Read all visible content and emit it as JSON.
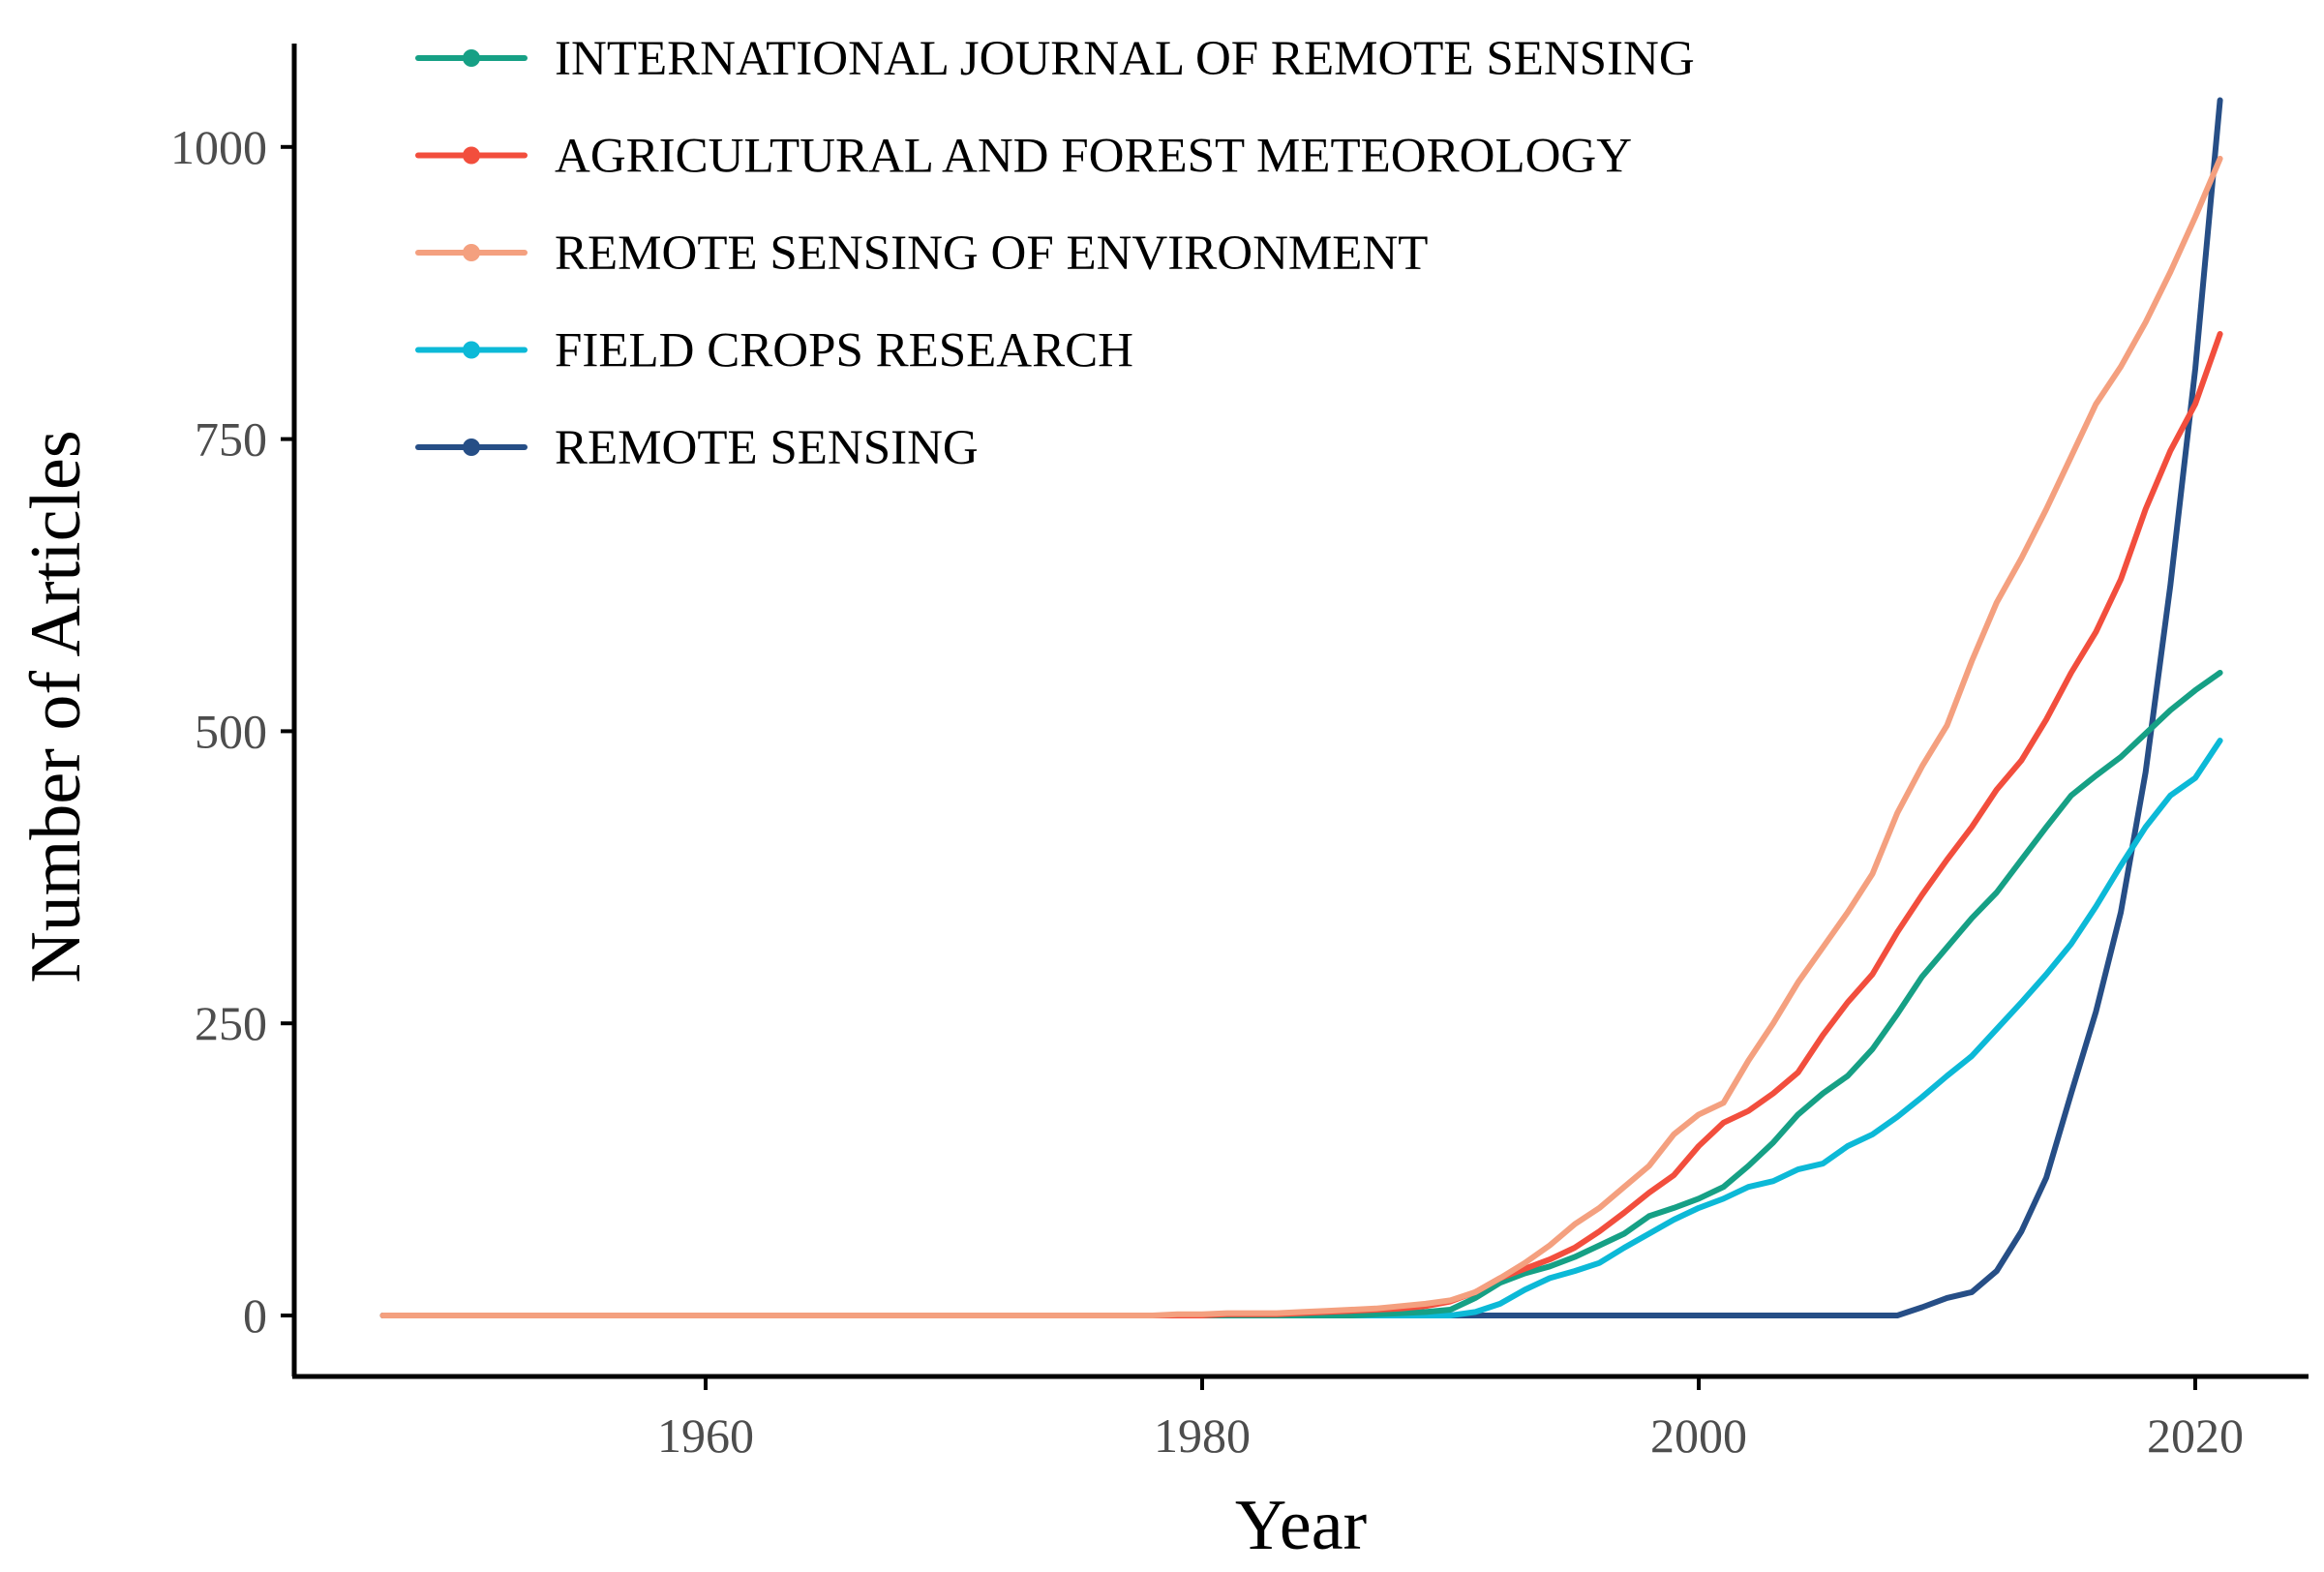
{
  "chart_data": {
    "type": "line",
    "title": "",
    "xlabel": "Year",
    "ylabel": "Number of Articles",
    "xlim": [
      1943,
      2024
    ],
    "ylim": [
      -50,
      1080
    ],
    "x_ticks": [
      1960,
      1980,
      2000,
      2020
    ],
    "y_ticks": [
      0,
      250,
      500,
      750,
      1000
    ],
    "grid": false,
    "legend_position": "top-left",
    "x": [
      1947,
      1948,
      1949,
      1950,
      1951,
      1952,
      1953,
      1954,
      1955,
      1956,
      1957,
      1958,
      1959,
      1960,
      1961,
      1962,
      1963,
      1964,
      1965,
      1966,
      1967,
      1968,
      1969,
      1970,
      1971,
      1972,
      1973,
      1974,
      1975,
      1976,
      1977,
      1978,
      1979,
      1980,
      1981,
      1982,
      1983,
      1984,
      1985,
      1986,
      1987,
      1988,
      1989,
      1990,
      1991,
      1992,
      1993,
      1994,
      1995,
      1996,
      1997,
      1998,
      1999,
      2000,
      2001,
      2002,
      2003,
      2004,
      2005,
      2006,
      2007,
      2008,
      2009,
      2010,
      2011,
      2012,
      2013,
      2014,
      2015,
      2016,
      2017,
      2018,
      2019,
      2020,
      2021
    ],
    "series": [
      {
        "name": "REMOTE SENSING",
        "color": "#264E86",
        "values": [
          0,
          0,
          0,
          0,
          0,
          0,
          0,
          0,
          0,
          0,
          0,
          0,
          0,
          0,
          0,
          0,
          0,
          0,
          0,
          0,
          0,
          0,
          0,
          0,
          0,
          0,
          0,
          0,
          0,
          0,
          0,
          0,
          0,
          0,
          0,
          0,
          0,
          0,
          0,
          0,
          0,
          0,
          0,
          0,
          0,
          0,
          0,
          0,
          0,
          0,
          0,
          0,
          0,
          0,
          0,
          0,
          0,
          0,
          0,
          0,
          0,
          0,
          7,
          15,
          20,
          38,
          72,
          118,
          190,
          260,
          345,
          465,
          625,
          810,
          1040
        ]
      },
      {
        "name": "FIELD CROPS RESEARCH",
        "color": "#0CB9D7",
        "values": [
          0,
          0,
          0,
          0,
          0,
          0,
          0,
          0,
          0,
          0,
          0,
          0,
          0,
          0,
          0,
          0,
          0,
          0,
          0,
          0,
          0,
          0,
          0,
          0,
          0,
          0,
          0,
          0,
          0,
          0,
          0,
          0,
          0,
          0,
          0,
          0,
          0,
          0,
          0,
          0,
          0,
          0,
          0,
          0,
          3,
          10,
          22,
          32,
          38,
          45,
          58,
          70,
          82,
          92,
          100,
          110,
          115,
          125,
          130,
          145,
          155,
          170,
          187,
          205,
          222,
          245,
          268,
          292,
          318,
          350,
          385,
          418,
          445,
          460,
          492
        ]
      },
      {
        "name": "INTERNATIONAL JOURNAL OF REMOTE SENSING",
        "color": "#16A085",
        "values": [
          0,
          0,
          0,
          0,
          0,
          0,
          0,
          0,
          0,
          0,
          0,
          0,
          0,
          0,
          0,
          0,
          0,
          0,
          0,
          0,
          0,
          0,
          0,
          0,
          0,
          0,
          0,
          0,
          0,
          0,
          0,
          0,
          0,
          0,
          0,
          0,
          0,
          0,
          0,
          0,
          1,
          2,
          3,
          5,
          15,
          28,
          36,
          42,
          50,
          60,
          70,
          85,
          92,
          100,
          110,
          128,
          148,
          172,
          190,
          205,
          228,
          258,
          290,
          315,
          340,
          362,
          390,
          418,
          445,
          462,
          478,
          498,
          518,
          535,
          550
        ]
      },
      {
        "name": "AGRICULTURAL AND FOREST METEOROLOGY",
        "color": "#F24E3D",
        "values": [
          0,
          0,
          0,
          0,
          0,
          0,
          0,
          0,
          0,
          0,
          0,
          0,
          0,
          0,
          0,
          0,
          0,
          0,
          0,
          0,
          0,
          0,
          0,
          0,
          0,
          0,
          0,
          0,
          0,
          0,
          0,
          0,
          0,
          0,
          1,
          1,
          1,
          2,
          3,
          4,
          5,
          6,
          8,
          12,
          20,
          32,
          40,
          48,
          58,
          72,
          88,
          105,
          120,
          145,
          165,
          175,
          190,
          208,
          240,
          268,
          292,
          328,
          360,
          390,
          418,
          450,
          475,
          510,
          550,
          585,
          630,
          690,
          740,
          780,
          840
        ]
      },
      {
        "name": "REMOTE SENSING OF ENVIRONMENT",
        "color": "#F4A07F",
        "values": [
          0,
          0,
          0,
          0,
          0,
          0,
          0,
          0,
          0,
          0,
          0,
          0,
          0,
          0,
          0,
          0,
          0,
          0,
          0,
          0,
          0,
          0,
          0,
          0,
          0,
          0,
          0,
          0,
          0,
          0,
          0,
          0,
          1,
          1,
          2,
          2,
          2,
          3,
          4,
          5,
          6,
          8,
          10,
          13,
          20,
          32,
          45,
          60,
          78,
          92,
          110,
          128,
          155,
          172,
          182,
          218,
          250,
          285,
          315,
          345,
          378,
          430,
          470,
          505,
          560,
          610,
          648,
          690,
          735,
          780,
          812,
          850,
          893,
          940,
          990
        ]
      }
    ],
    "legend_entries": [
      "INTERNATIONAL JOURNAL OF REMOTE SENSING",
      "AGRICULTURAL AND FOREST METEOROLOGY",
      "REMOTE SENSING OF ENVIRONMENT",
      "FIELD CROPS RESEARCH",
      "REMOTE SENSING"
    ]
  }
}
